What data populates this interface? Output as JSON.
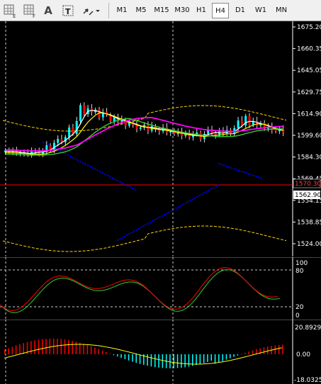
{
  "toolbar": {
    "icons": [
      "grid-e-icon",
      "grid-f-icon",
      "text-tool-icon",
      "text-label-tool-icon",
      "arrows-tool-icon",
      "dropdown-icon"
    ],
    "icon_glyphs": {
      "text": "A",
      "label": "T"
    },
    "timeframes": [
      "M1",
      "M5",
      "M15",
      "M30",
      "H1",
      "H4",
      "D1",
      "W1",
      "MN"
    ],
    "active_timeframe": "H4"
  },
  "price_axis": {
    "labels": [
      "1675.20",
      "1660.35",
      "1645.05",
      "1629.75",
      "1614.90",
      "1599.60",
      "1584.30",
      "1569.45",
      "1554.15",
      "1538.85",
      "1524.00"
    ],
    "current_price": "1562.90",
    "red_line_price": "1570.30"
  },
  "stoch_axis": {
    "labels": [
      "100",
      "80",
      "20",
      "0"
    ]
  },
  "macd_axis": {
    "labels": [
      "20.8929",
      "0.00",
      "-18.0325"
    ]
  },
  "colors": {
    "bull_candle": "#00ffff",
    "bear_candle": "#ff0000",
    "ma_fast": "#ffffff",
    "ma_yellow": "#ffff00",
    "ma_green": "#32cd32",
    "ma_magenta": "#ff00ff",
    "parabolic_sar": "#0000ff",
    "envelope": "#ffd700",
    "stoch_main": "#ff0000",
    "stoch_signal": "#32cd32",
    "macd_pos": "#ff0000",
    "macd_neg": "#00ffff",
    "macd_signal": "#ffff00"
  }
}
